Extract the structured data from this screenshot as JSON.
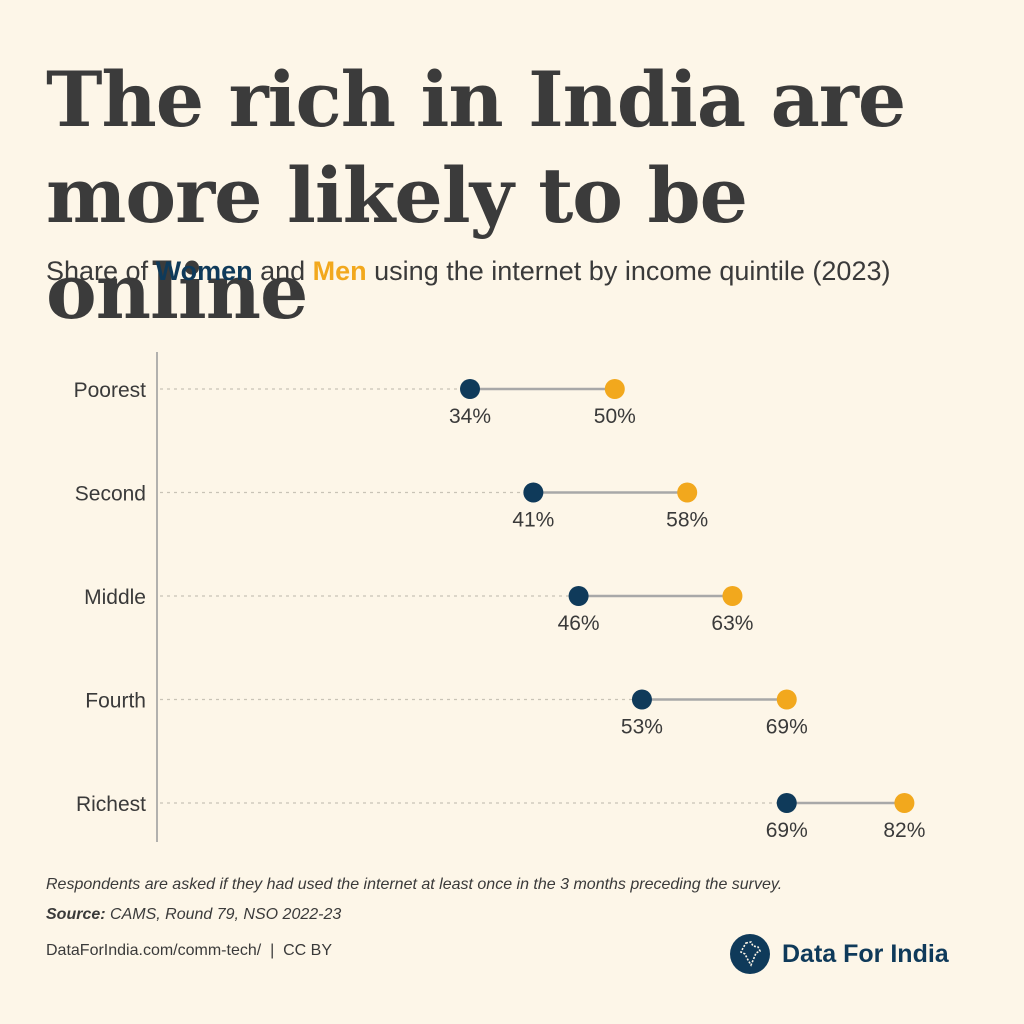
{
  "title": "The rich in India are more likely to be online",
  "subtitle": {
    "part1": "Share of ",
    "women": "Women",
    "part2": " and ",
    "men": "Men",
    "part3": " using the internet by income quintile (2023)"
  },
  "colors": {
    "women": "#0f3a5a",
    "men": "#f2a81d",
    "connector": "#a8a8a8",
    "background": "#fdf6e8"
  },
  "chart_data": {
    "type": "dumbbell",
    "categories": [
      "Poorest",
      "Second",
      "Middle",
      "Fourth",
      "Richest"
    ],
    "series": [
      {
        "name": "Women",
        "values": [
          34,
          41,
          46,
          53,
          69
        ],
        "labels": [
          "34%",
          "41%",
          "46%",
          "53%",
          "69%"
        ]
      },
      {
        "name": "Men",
        "values": [
          50,
          58,
          63,
          69,
          82
        ],
        "labels": [
          "50%",
          "58%",
          "63%",
          "69%",
          "82%"
        ]
      }
    ],
    "unit": "%",
    "grid": "dotted horizontal"
  },
  "footer": {
    "note": "Respondents are asked if they had used the internet at least once in the 3 months preceding the survey.",
    "source_label": "Source:",
    "source_text": " CAMS, Round 79, NSO 2022-23",
    "credit": "DataForIndia.com/comm-tech/  |  CC BY"
  },
  "brand": {
    "name": "Data For India",
    "logo_icon": "india-map-icon"
  }
}
